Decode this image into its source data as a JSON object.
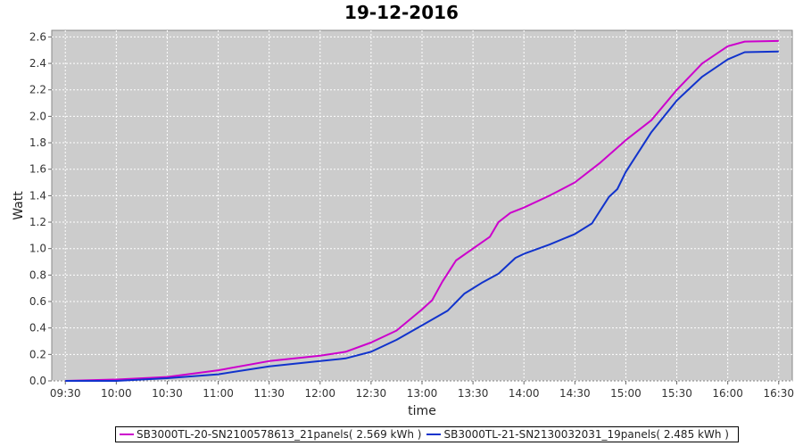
{
  "chart_data": {
    "type": "line",
    "title": "19-12-2016",
    "xlabel": "time",
    "ylabel": "Watt",
    "ylim": [
      0,
      2.65
    ],
    "y_ticks": [
      0.0,
      0.2,
      0.4,
      0.6,
      0.8,
      1.0,
      1.2,
      1.4,
      1.6,
      1.8,
      2.0,
      2.2,
      2.4,
      2.6
    ],
    "y_tick_labels": [
      "0.0",
      "0.2",
      "0.4",
      "0.6",
      "0.8",
      "1.0",
      "1.2",
      "1.4",
      "1.6",
      "1.8",
      "2.0",
      "2.2",
      "2.4",
      "2.6"
    ],
    "x_tick_labels": [
      "09:30",
      "10:00",
      "10:30",
      "11:00",
      "11:30",
      "12:00",
      "12:30",
      "13:00",
      "13:30",
      "14:00",
      "14:30",
      "15:00",
      "15:30",
      "16:00",
      "16:30"
    ],
    "xlim": [
      "09:22",
      "16:38"
    ],
    "grid": true,
    "legend_position": "bottom",
    "background": "#cccccc",
    "series": [
      {
        "name": "SB3000TL-20-SN2100578613_21panels( 2.569 kWh )",
        "color": "#cc00cc",
        "points": [
          [
            "09:30",
            0.0
          ],
          [
            "10:00",
            0.01
          ],
          [
            "10:30",
            0.03
          ],
          [
            "11:00",
            0.08
          ],
          [
            "11:30",
            0.15
          ],
          [
            "12:00",
            0.19
          ],
          [
            "12:15",
            0.22
          ],
          [
            "12:30",
            0.29
          ],
          [
            "12:45",
            0.38
          ],
          [
            "13:00",
            0.54
          ],
          [
            "13:06",
            0.61
          ],
          [
            "13:12",
            0.75
          ],
          [
            "13:20",
            0.91
          ],
          [
            "13:30",
            1.0
          ],
          [
            "13:40",
            1.09
          ],
          [
            "13:45",
            1.2
          ],
          [
            "13:52",
            1.27
          ],
          [
            "14:00",
            1.31
          ],
          [
            "14:15",
            1.4
          ],
          [
            "14:30",
            1.5
          ],
          [
            "14:45",
            1.65
          ],
          [
            "15:00",
            1.82
          ],
          [
            "15:15",
            1.97
          ],
          [
            "15:30",
            2.2
          ],
          [
            "15:45",
            2.4
          ],
          [
            "16:00",
            2.53
          ],
          [
            "16:10",
            2.565
          ],
          [
            "16:30",
            2.57
          ]
        ]
      },
      {
        "name": "SB3000TL-21-SN2130032031_19panels( 2.485 kWh )",
        "color": "#1133cc",
        "points": [
          [
            "09:30",
            0.0
          ],
          [
            "10:00",
            0.0
          ],
          [
            "10:30",
            0.02
          ],
          [
            "11:00",
            0.05
          ],
          [
            "11:30",
            0.11
          ],
          [
            "12:00",
            0.15
          ],
          [
            "12:15",
            0.17
          ],
          [
            "12:30",
            0.22
          ],
          [
            "12:45",
            0.31
          ],
          [
            "13:00",
            0.42
          ],
          [
            "13:15",
            0.53
          ],
          [
            "13:25",
            0.66
          ],
          [
            "13:35",
            0.74
          ],
          [
            "13:45",
            0.81
          ],
          [
            "13:55",
            0.93
          ],
          [
            "14:00",
            0.96
          ],
          [
            "14:15",
            1.03
          ],
          [
            "14:30",
            1.11
          ],
          [
            "14:40",
            1.19
          ],
          [
            "14:45",
            1.29
          ],
          [
            "14:50",
            1.39
          ],
          [
            "14:55",
            1.45
          ],
          [
            "15:00",
            1.58
          ],
          [
            "15:15",
            1.88
          ],
          [
            "15:30",
            2.12
          ],
          [
            "15:45",
            2.3
          ],
          [
            "16:00",
            2.43
          ],
          [
            "16:10",
            2.485
          ],
          [
            "16:30",
            2.49
          ]
        ]
      }
    ]
  }
}
